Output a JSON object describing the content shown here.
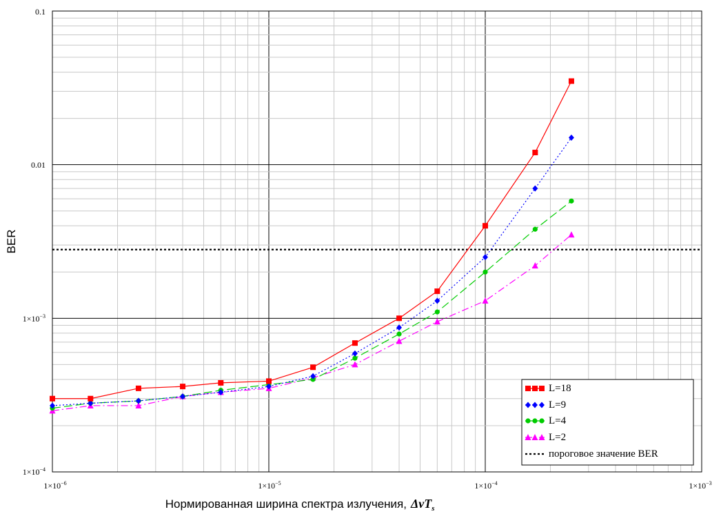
{
  "chart_data": {
    "type": "line",
    "xlabel": "Нормированная ширина спектра излучения,",
    "xlabel_symbol": "ΔνT",
    "xlabel_symbol_sub": "s",
    "ylabel": "BER",
    "xscale": "log",
    "yscale": "log",
    "xlim": [
      1e-06,
      0.001
    ],
    "ylim": [
      0.0001,
      0.1
    ],
    "grid": true,
    "legend_position": "bottom-right",
    "x_ticks": [
      {
        "mant": "1×10",
        "exp": "−6"
      },
      {
        "mant": "1×10",
        "exp": "−5"
      },
      {
        "mant": "1×10",
        "exp": "−4"
      },
      {
        "mant": "1×10",
        "exp": "−3"
      }
    ],
    "y_ticks": [
      {
        "mant": "1×10",
        "exp": "−4"
      },
      {
        "mant": "1×10",
        "exp": "−3"
      },
      {
        "mant": "0.01",
        "exp": ""
      },
      {
        "mant": "0.1",
        "exp": ""
      }
    ],
    "x": [
      1e-06,
      1.5e-06,
      2.5e-06,
      4e-06,
      6e-06,
      1e-05,
      1.6e-05,
      2.5e-05,
      4e-05,
      6e-05,
      0.0001,
      0.00017,
      0.00025
    ],
    "series": [
      {
        "name": "L=18",
        "color": "#ff0000",
        "marker": "square",
        "dash": "",
        "values": [
          0.0003,
          0.0003,
          0.00035,
          0.00036,
          0.00038,
          0.00039,
          0.00048,
          0.00069,
          0.001,
          0.0015,
          0.004,
          0.012,
          0.035
        ]
      },
      {
        "name": "L=9",
        "color": "#0000ff",
        "marker": "diamond",
        "dash": "2,3",
        "values": [
          0.00027,
          0.00028,
          0.00029,
          0.00031,
          0.00033,
          0.00036,
          0.00042,
          0.00059,
          0.00087,
          0.0013,
          0.0025,
          0.007,
          0.015
        ]
      },
      {
        "name": "L=4",
        "color": "#00cc00",
        "marker": "circle",
        "dash": "12,5",
        "values": [
          0.00026,
          0.00028,
          0.00029,
          0.00031,
          0.00034,
          0.00037,
          0.0004,
          0.00055,
          0.00079,
          0.0011,
          0.002,
          0.0038,
          0.0058
        ]
      },
      {
        "name": "L=2",
        "color": "#ff00ff",
        "marker": "triangle",
        "dash": "10,4,2,4",
        "values": [
          0.00025,
          0.00027,
          0.00027,
          0.00031,
          0.00033,
          0.00035,
          0.00041,
          0.0005,
          0.00071,
          0.00095,
          0.0013,
          0.0022,
          0.0035
        ]
      }
    ],
    "threshold": {
      "name": "пороговое значение BER",
      "value": 0.0028,
      "color": "#000000",
      "dash": "3,3"
    }
  }
}
